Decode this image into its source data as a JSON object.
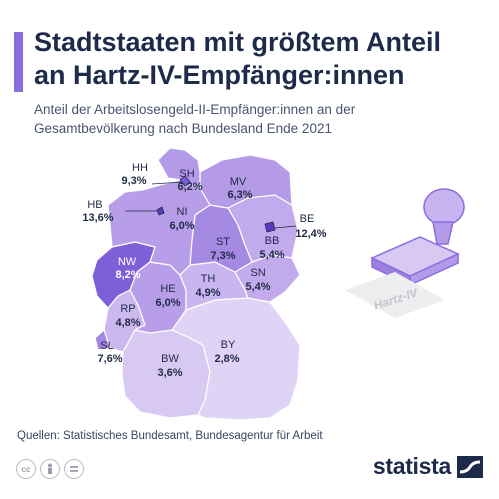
{
  "header": {
    "title_line1": "Stadtstaaten mit größtem Anteil",
    "title_line2": "an Hartz-IV-Empfänger:innen",
    "subtitle_line1": "Anteil der Arbeitslosengeld-II-Empfänger:innen an der",
    "subtitle_line2": "Gesamtbevölkerung nach Bundesland Ende 2021"
  },
  "map": {
    "regions": [
      {
        "code": "SH",
        "value": "6,2%",
        "pct": 6.2,
        "color": "#b59ae8"
      },
      {
        "code": "HH",
        "value": "9,3%",
        "pct": 9.3,
        "color": "#7b5bd6"
      },
      {
        "code": "MV",
        "value": "6,3%",
        "pct": 6.3,
        "color": "#b59ae8"
      },
      {
        "code": "HB",
        "value": "13,6%",
        "pct": 13.6,
        "color": "#5b3bc4"
      },
      {
        "code": "NI",
        "value": "6,0%",
        "pct": 6.0,
        "color": "#b89ee9"
      },
      {
        "code": "BE",
        "value": "12,4%",
        "pct": 12.4,
        "color": "#5b3bc4"
      },
      {
        "code": "ST",
        "value": "7,3%",
        "pct": 7.3,
        "color": "#a689e3"
      },
      {
        "code": "BB",
        "value": "5,4%",
        "pct": 5.4,
        "color": "#c2abec"
      },
      {
        "code": "NW",
        "value": "8,2%",
        "pct": 8.2,
        "color": "#7d60d8"
      },
      {
        "code": "TH",
        "value": "4,9%",
        "pct": 4.9,
        "color": "#c9b5ef"
      },
      {
        "code": "SN",
        "value": "5,4%",
        "pct": 5.4,
        "color": "#c2abec"
      },
      {
        "code": "HE",
        "value": "6,0%",
        "pct": 6.0,
        "color": "#b89ee9"
      },
      {
        "code": "RP",
        "value": "4,8%",
        "pct": 4.8,
        "color": "#cbb8ef"
      },
      {
        "code": "SL",
        "value": "7,6%",
        "pct": 7.6,
        "color": "#a486e2"
      },
      {
        "code": "BW",
        "value": "3,6%",
        "pct": 3.6,
        "color": "#d8c9f3"
      },
      {
        "code": "BY",
        "value": "2,8%",
        "pct": 2.8,
        "color": "#e0d4f6"
      }
    ]
  },
  "stamp": {
    "text": "Hartz-IV"
  },
  "footer": {
    "source": "Quellen: Statistisches Bundesamt, Bundesagentur für Arbeit",
    "brand": "statista",
    "license_icons": [
      "cc-icon",
      "person-icon",
      "equals-icon"
    ]
  },
  "colors": {
    "accent": "#8a6de0",
    "title": "#1e2a4a"
  }
}
